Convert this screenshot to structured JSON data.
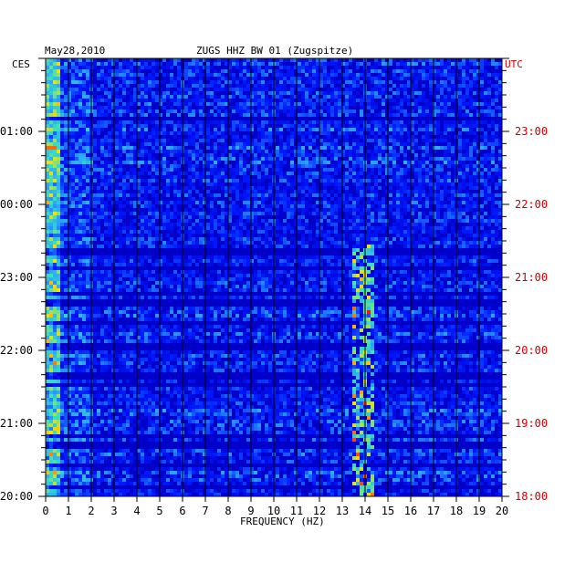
{
  "header": {
    "date": "May28,2010",
    "station": "ZUGS HHZ BW 01 (Zugspitze)"
  },
  "chart_data": {
    "type": "heatmap",
    "title": "ZUGS HHZ BW 01 (Zugspitze)",
    "date": "May28,2010",
    "xlabel": "FREQUENCY (HZ)",
    "left_axis_label": "CES",
    "right_axis_label": "UTC",
    "xlim": [
      0,
      20
    ],
    "x_ticks": [
      "0",
      "1",
      "2",
      "3",
      "4",
      "5",
      "6",
      "7",
      "8",
      "9",
      "10",
      "11",
      "12",
      "13",
      "14",
      "15",
      "16",
      "17",
      "18",
      "19",
      "20"
    ],
    "left_time_labels": [
      "01:00",
      "00:00",
      "23:00",
      "22:00",
      "21:00",
      "20:00"
    ],
    "right_time_labels": [
      "23:00",
      "22:00",
      "21:00",
      "20:00",
      "19:00",
      "18:00"
    ],
    "colors": {
      "background": "#0000c8",
      "low": "#0018ff",
      "mid": "#2aa0ff",
      "high": "#38e0c0",
      "peak": "#ff1010",
      "grid": "#000000",
      "right_axis_text": "#cc0000"
    },
    "notes": "Spectrogram: strongest energy near 0-0.5 Hz; persistent narrow band near 13.8-14.2 Hz in later hours."
  }
}
